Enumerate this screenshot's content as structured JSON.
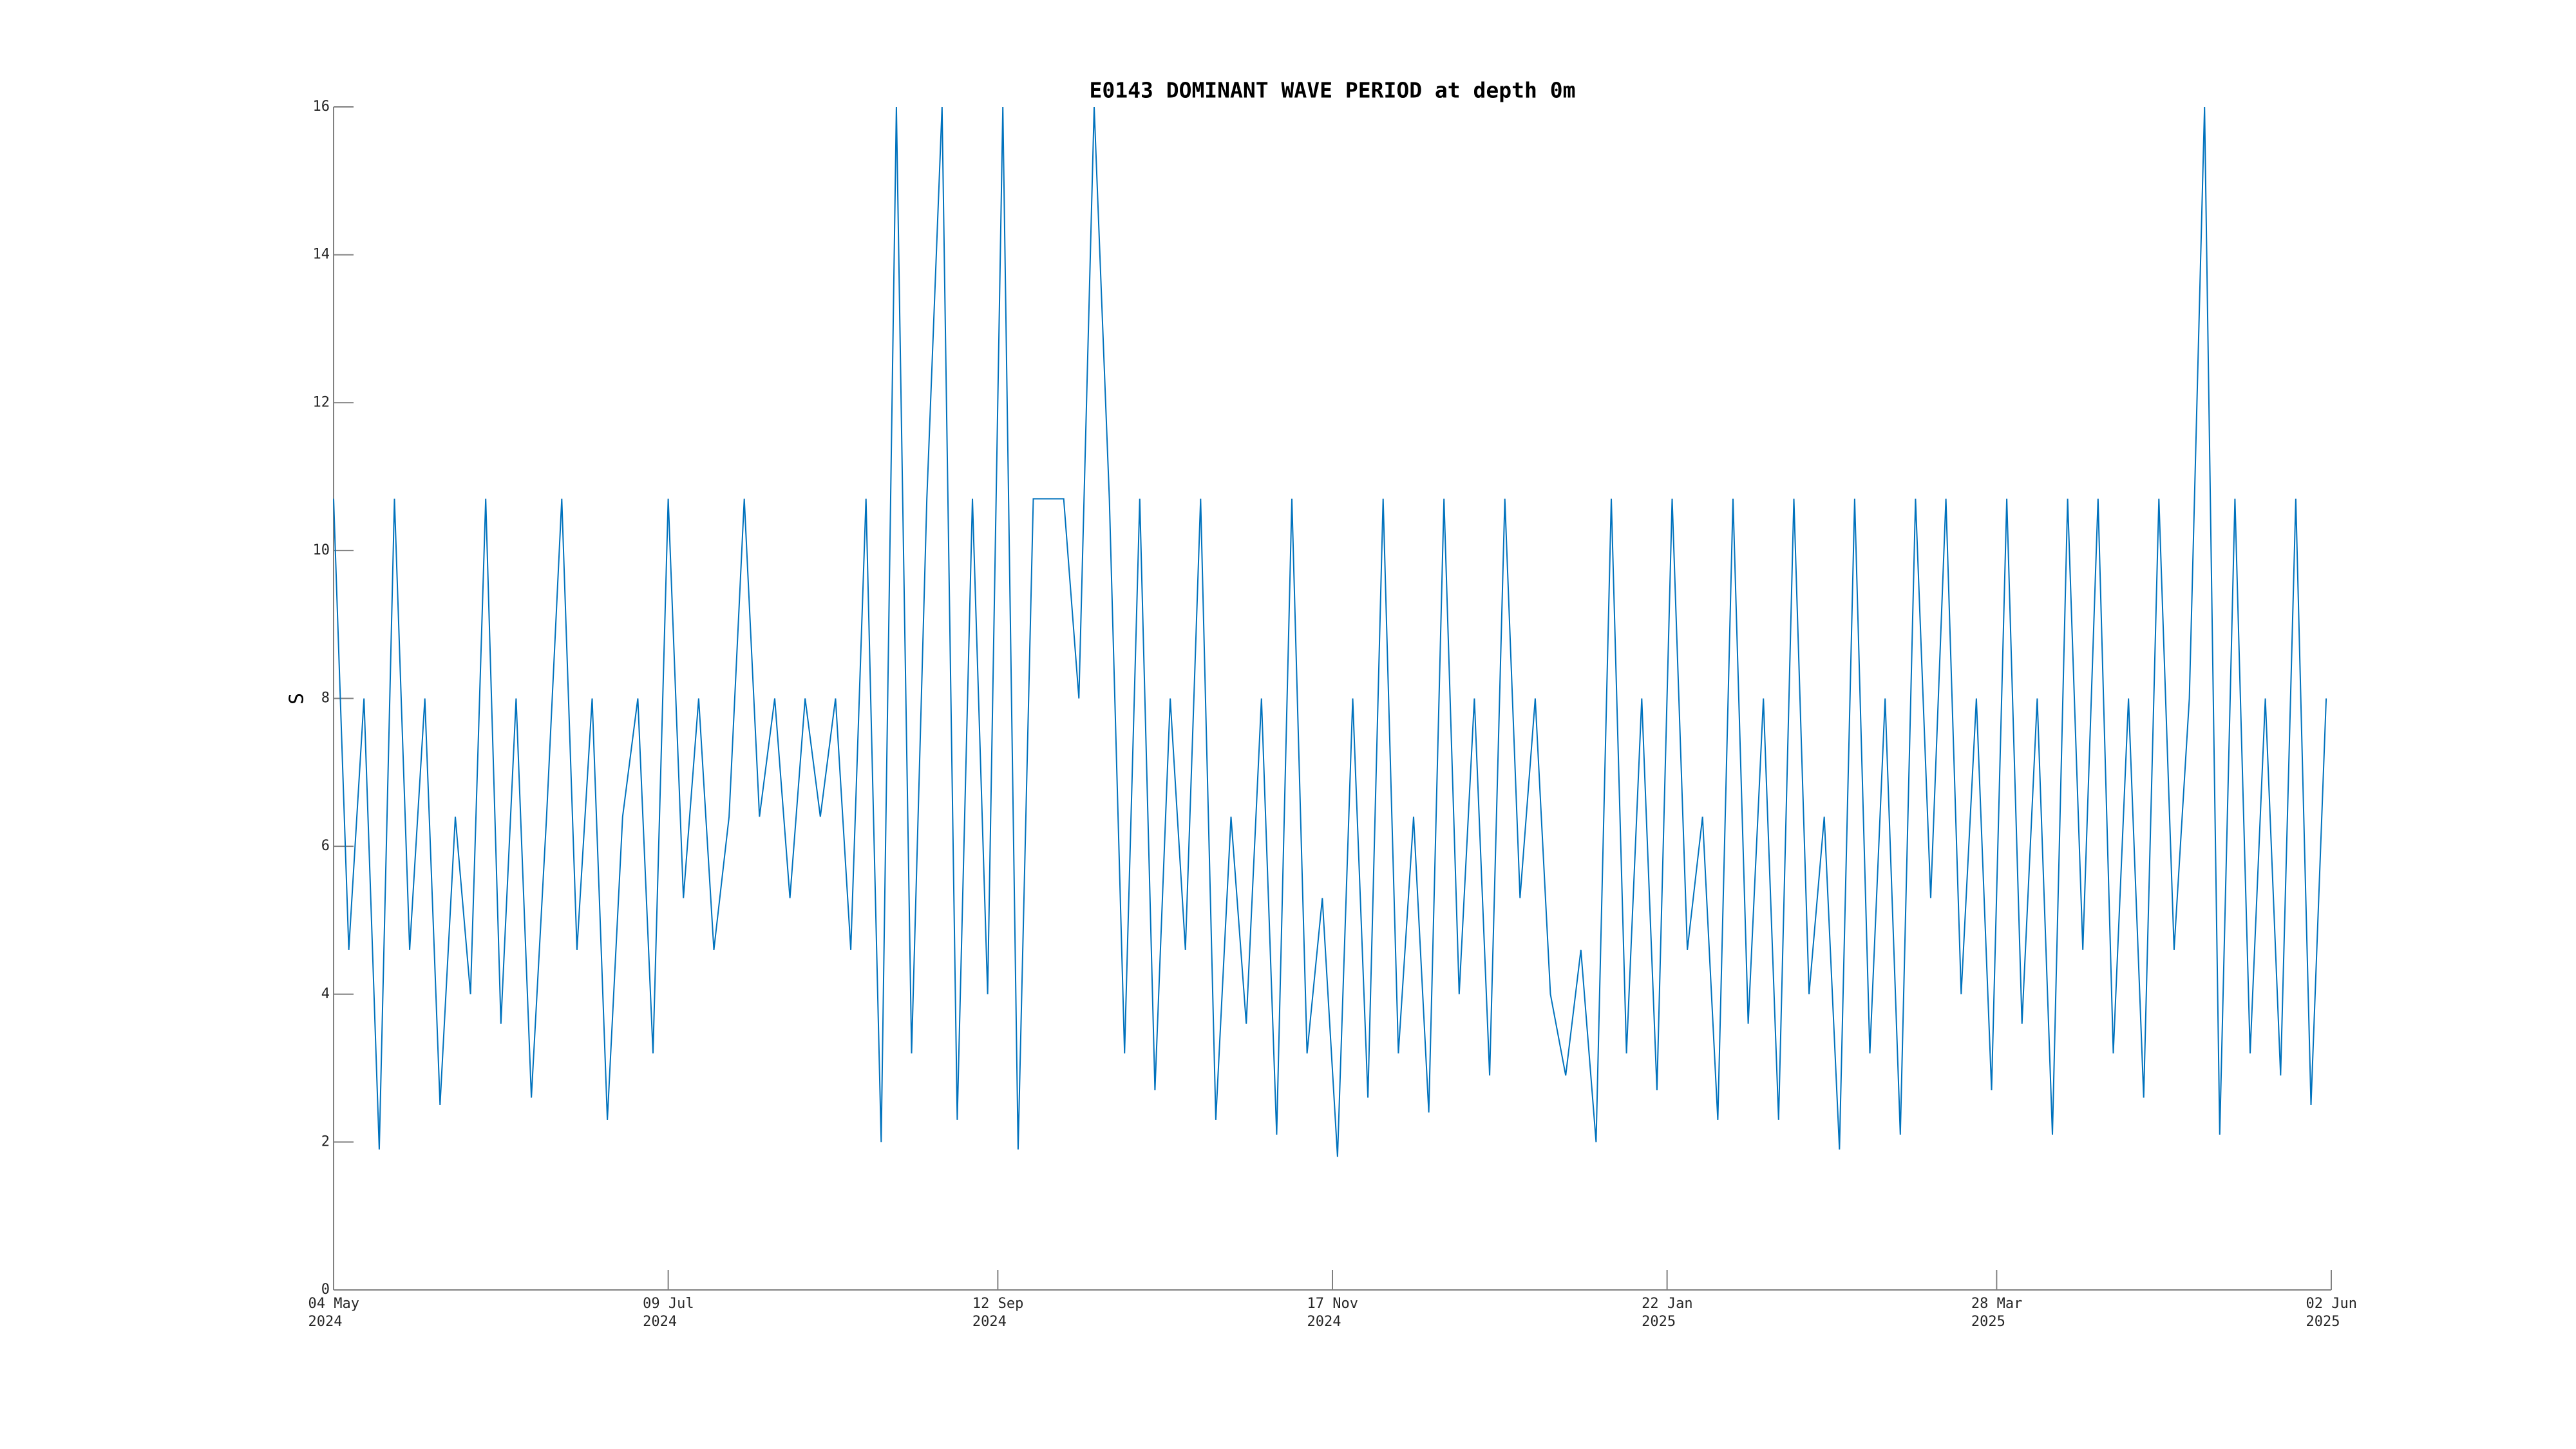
{
  "chart_data": {
    "type": "line",
    "title": "E0143 DOMINANT WAVE PERIOD at depth 0m",
    "y_label": "S",
    "color": "#0072bd",
    "grid": false,
    "xlim": [
      "2024-05-04",
      "2025-06-02"
    ],
    "xticks": [
      {
        "value": "2024-05-04",
        "label": "04 May\n2024"
      },
      {
        "value": "2024-07-09",
        "label": "09 Jul\n2024"
      },
      {
        "value": "2024-09-12",
        "label": "12 Sep\n2024"
      },
      {
        "value": "2024-11-17",
        "label": "17 Nov\n2024"
      },
      {
        "value": "2025-01-22",
        "label": "22 Jan\n2025"
      },
      {
        "value": "2025-03-28",
        "label": "28 Mar\n2025"
      },
      {
        "value": "2025-06-02",
        "label": "02 Jun\n2025"
      }
    ],
    "ylim": [
      0,
      16
    ],
    "yticks": [
      0,
      2,
      4,
      6,
      8,
      10,
      12,
      14,
      16
    ],
    "x": [
      "2024-05-04",
      "2024-05-07",
      "2024-05-10",
      "2024-05-13",
      "2024-05-16",
      "2024-05-19",
      "2024-05-22",
      "2024-05-25",
      "2024-05-28",
      "2024-05-31",
      "2024-06-03",
      "2024-06-06",
      "2024-06-09",
      "2024-06-12",
      "2024-06-15",
      "2024-06-18",
      "2024-06-21",
      "2024-06-24",
      "2024-06-27",
      "2024-06-30",
      "2024-07-03",
      "2024-07-06",
      "2024-07-09",
      "2024-07-12",
      "2024-07-15",
      "2024-07-18",
      "2024-07-21",
      "2024-07-24",
      "2024-07-27",
      "2024-07-30",
      "2024-08-02",
      "2024-08-05",
      "2024-08-08",
      "2024-08-11",
      "2024-08-14",
      "2024-08-17",
      "2024-08-20",
      "2024-08-23",
      "2024-08-26",
      "2024-08-29",
      "2024-09-01",
      "2024-09-04",
      "2024-09-07",
      "2024-09-10",
      "2024-09-13",
      "2024-09-16",
      "2024-09-19",
      "2024-09-22",
      "2024-09-25",
      "2024-09-28",
      "2024-10-01",
      "2024-10-04",
      "2024-10-07",
      "2024-10-10",
      "2024-10-13",
      "2024-10-16",
      "2024-10-19",
      "2024-10-22",
      "2024-10-25",
      "2024-10-28",
      "2024-10-31",
      "2024-11-03",
      "2024-11-06",
      "2024-11-09",
      "2024-11-12",
      "2024-11-15",
      "2024-11-18",
      "2024-11-21",
      "2024-11-24",
      "2024-11-27",
      "2024-11-30",
      "2024-12-03",
      "2024-12-06",
      "2024-12-09",
      "2024-12-12",
      "2024-12-15",
      "2024-12-18",
      "2024-12-21",
      "2024-12-24",
      "2024-12-27",
      "2024-12-30",
      "2025-01-02",
      "2025-01-05",
      "2025-01-08",
      "2025-01-11",
      "2025-01-14",
      "2025-01-17",
      "2025-01-20",
      "2025-01-23",
      "2025-01-26",
      "2025-01-29",
      "2025-02-01",
      "2025-02-04",
      "2025-02-07",
      "2025-02-10",
      "2025-02-13",
      "2025-02-16",
      "2025-02-19",
      "2025-02-22",
      "2025-02-25",
      "2025-02-28",
      "2025-03-03",
      "2025-03-06",
      "2025-03-09",
      "2025-03-12",
      "2025-03-15",
      "2025-03-18",
      "2025-03-21",
      "2025-03-24",
      "2025-03-27",
      "2025-03-30",
      "2025-04-02",
      "2025-04-05",
      "2025-04-08",
      "2025-04-11",
      "2025-04-14",
      "2025-04-17",
      "2025-04-20",
      "2025-04-23",
      "2025-04-26",
      "2025-04-29",
      "2025-05-02",
      "2025-05-05",
      "2025-05-08",
      "2025-05-11",
      "2025-05-14",
      "2025-05-17",
      "2025-05-20",
      "2025-05-23",
      "2025-05-26",
      "2025-05-29",
      "2025-06-01"
    ],
    "values": [
      10.7,
      4.6,
      8,
      1.9,
      10.7,
      4.6,
      8,
      2.5,
      6.4,
      4.0,
      10.7,
      3.6,
      8,
      2.6,
      6.4,
      10.7,
      4.6,
      8,
      2.3,
      6.4,
      8,
      3.2,
      10.7,
      5.3,
      8,
      4.6,
      6.4,
      10.7,
      6.4,
      8,
      5.3,
      8,
      6.4,
      8,
      4.6,
      10.7,
      2.0,
      16,
      3.2,
      10.7,
      16,
      2.3,
      10.7,
      4.0,
      16,
      1.9,
      10.7,
      10.7,
      10.7,
      8,
      16,
      10.7,
      3.2,
      10.7,
      2.7,
      8,
      4.6,
      10.7,
      2.3,
      6.4,
      3.6,
      8,
      2.1,
      10.7,
      3.2,
      5.3,
      1.8,
      8,
      2.6,
      10.7,
      3.2,
      6.4,
      2.4,
      10.7,
      4.0,
      8,
      2.9,
      10.7,
      5.3,
      8,
      4.0,
      2.9,
      4.6,
      2.0,
      10.7,
      3.2,
      8,
      2.7,
      10.7,
      4.6,
      6.4,
      2.3,
      10.7,
      3.6,
      8,
      2.3,
      10.7,
      4.0,
      6.4,
      1.9,
      10.7,
      3.2,
      8,
      2.1,
      10.7,
      5.3,
      10.7,
      4.0,
      8,
      2.7,
      10.7,
      3.6,
      8,
      2.1,
      10.7,
      4.6,
      10.7,
      3.2,
      8,
      2.6,
      10.7,
      4.6,
      8,
      16,
      2.1,
      10.7,
      3.2,
      8,
      2.9,
      10.7,
      2.5,
      8
    ]
  }
}
